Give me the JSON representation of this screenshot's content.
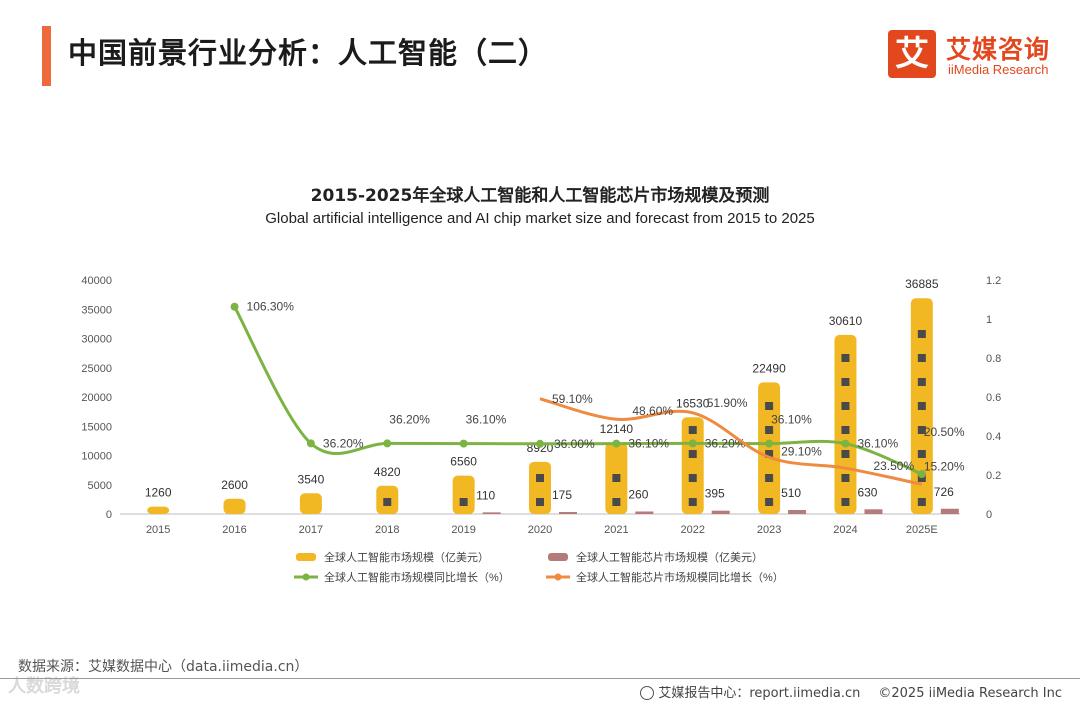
{
  "header": {
    "title": "中国前景行业分析：人工智能（二）",
    "logo_cn": "艾媒咨询",
    "logo_en": "iiMedia Research",
    "logo_mark": "艾"
  },
  "colors": {
    "accent": "#ef6a3a",
    "brand": "#e2471d",
    "bar_ai": "#f2b824",
    "bar_chip": "#b57b7b",
    "line_ai": "#7cb342",
    "line_chip": "#ef8a3f"
  },
  "chart_data": {
    "type": "bar",
    "title": "2015-2025年全球人工智能和人工智能芯片市场规模及预测",
    "subtitle": "Global artificial intelligence and AI chip market size and forecast from 2015 to 2025",
    "categories": [
      "2015",
      "2016",
      "2017",
      "2018",
      "2019",
      "2020",
      "2021",
      "2022",
      "2023",
      "2024",
      "2025E"
    ],
    "y_left": {
      "ylim": [
        0,
        40000
      ],
      "ticks": [
        "0",
        "5000",
        "10000",
        "15000",
        "20000",
        "25000",
        "30000",
        "35000",
        "40000"
      ]
    },
    "y_right": {
      "ylim": [
        0,
        1.2
      ],
      "ticks": [
        "0",
        "0.2",
        "0.4",
        "0.6",
        "0.8",
        "1",
        "1.2"
      ]
    },
    "series": [
      {
        "name": "全球人工智能市场规模（亿美元）",
        "kind": "bar",
        "axis": "left",
        "values": [
          1260,
          2600,
          3540,
          4820,
          6560,
          8920,
          12140,
          16530,
          22490,
          30610,
          36885
        ],
        "labels": [
          "1260",
          "2600",
          "3540",
          "4820",
          "6560",
          "8920",
          "12140",
          "16530",
          "22490",
          "30610",
          "36885"
        ]
      },
      {
        "name": "全球人工智能芯片市场规模（亿美元）",
        "kind": "bar",
        "axis": "left",
        "values": [
          null,
          null,
          null,
          null,
          110,
          175,
          260,
          395,
          510,
          630,
          726
        ],
        "labels": [
          null,
          null,
          null,
          null,
          "110",
          "175",
          "260",
          "395",
          "510",
          "630",
          "726"
        ]
      },
      {
        "name": "全球人工智能市场规模同比增长（%）",
        "kind": "line",
        "axis": "right",
        "values": [
          null,
          1.063,
          0.362,
          0.362,
          0.361,
          0.36,
          0.361,
          0.362,
          0.361,
          0.361,
          0.205
        ],
        "labels": [
          null,
          "106.30%",
          "36.20%",
          "36.20%",
          "36.10%",
          "36.00%",
          "36.10%",
          "36.20%",
          "36.10%",
          "36.10%",
          "20.50%"
        ]
      },
      {
        "name": "全球人工智能芯片市场规模同比增长（%）",
        "kind": "line",
        "axis": "right",
        "values": [
          null,
          null,
          null,
          null,
          null,
          0.591,
          0.486,
          0.519,
          0.291,
          0.235,
          0.152
        ],
        "labels": [
          null,
          null,
          null,
          null,
          null,
          "59.10%",
          "48.60%",
          "51.90%",
          "29.10%",
          "23.50%",
          "15.20%"
        ]
      }
    ]
  },
  "footer": {
    "source": "数据来源：艾媒数据中心（data.iimedia.cn）",
    "report": "艾媒报告中心：report.iimedia.cn",
    "copyright": "©2025  iiMedia Research  Inc",
    "watermark": "人数跨境"
  }
}
